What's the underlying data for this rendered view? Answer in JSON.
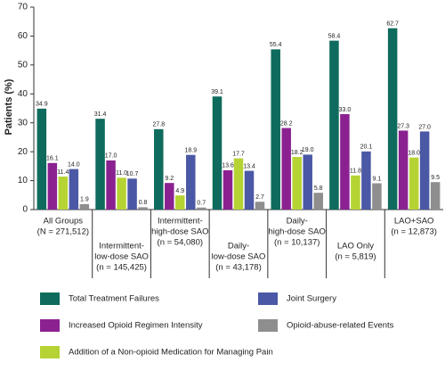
{
  "chart_data": {
    "type": "bar",
    "ylabel": "Patients (%)",
    "categories": [
      [
        "All Groups",
        "(N = 271,512)"
      ],
      [
        "Intermittent-",
        "low-dose SAO",
        "(n = 145,425)"
      ],
      [
        "Intermittent-",
        "high-dose SAO",
        "(n = 54,080)"
      ],
      [
        "Daily-",
        "low-dose SAO",
        "(n = 43,178)"
      ],
      [
        "Daily-",
        "high-dose SAO",
        "(n = 10,137)"
      ],
      [
        "LAO Only",
        "(n = 5,819)"
      ],
      [
        "LAO+SAO",
        "(n = 12,873)"
      ]
    ],
    "series": [
      {
        "name": "Total Treatment Failures",
        "color": "#0e6b5d",
        "values": [
          34.9,
          31.4,
          27.8,
          39.1,
          55.4,
          58.4,
          62.7
        ],
        "value_labels": [
          "34.9",
          "31.4",
          "27.8",
          "39.1",
          "55.4",
          "58.4",
          "62.7"
        ]
      },
      {
        "name": "Increased Opioid Regimen Intensity",
        "color": "#8b2191",
        "values": [
          16.1,
          17.0,
          9.2,
          13.6,
          28.2,
          33.0,
          27.3
        ],
        "value_labels": [
          "16.1",
          "17.0",
          "9.2",
          "13.6",
          "28.2",
          "33.0",
          "27.3"
        ]
      },
      {
        "name": "Addition of a Non-opioid Medication for Managing Pain",
        "color": "#b6d334",
        "values": [
          11.4,
          11.0,
          4.9,
          17.7,
          18.2,
          11.8,
          18.0
        ],
        "value_labels": [
          "11.4",
          "11.0",
          "4.9",
          "17.7",
          "18.2",
          "11.8",
          "18.0"
        ]
      },
      {
        "name": "Joint Surgery",
        "color": "#4b58a5",
        "values": [
          14.0,
          10.7,
          18.9,
          13.4,
          19.0,
          20.1,
          27.0
        ],
        "value_labels": [
          "14.0",
          "10.7",
          "18.9",
          "13.4",
          "19.0",
          "20.1",
          "27.0"
        ]
      },
      {
        "name": "Opioid-abuse-related Events",
        "color": "#8e8e8e",
        "values": [
          1.9,
          0.8,
          0.7,
          2.7,
          5.8,
          9.1,
          9.5
        ],
        "value_labels": [
          "1.9",
          "0.8",
          "0.7",
          "2.7",
          "5.8",
          "9.1",
          "9.5"
        ]
      }
    ],
    "ylim": [
      0,
      70
    ],
    "yticks": [
      0,
      10,
      20,
      30,
      40,
      50,
      60,
      70
    ]
  }
}
